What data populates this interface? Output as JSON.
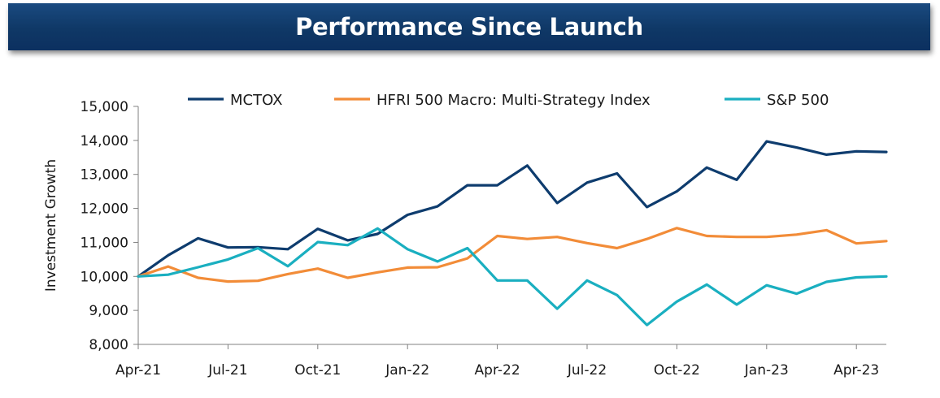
{
  "header": {
    "title": "Performance Since Launch"
  },
  "chart_data": {
    "type": "line",
    "ylabel": "Investment Growth",
    "ylim": [
      8000,
      15000
    ],
    "y_ticks": [
      "8,000",
      "9,000",
      "10,000",
      "11,000",
      "12,000",
      "13,000",
      "14,000",
      "15,000"
    ],
    "x": [
      "Apr-21",
      "May-21",
      "Jun-21",
      "Jul-21",
      "Aug-21",
      "Sep-21",
      "Oct-21",
      "Nov-21",
      "Dec-21",
      "Jan-22",
      "Feb-22",
      "Mar-22",
      "Apr-22",
      "May-22",
      "Jun-22",
      "Jul-22",
      "Aug-22",
      "Sep-22",
      "Oct-22",
      "Nov-22",
      "Dec-22",
      "Jan-23",
      "Feb-23",
      "Mar-23",
      "Apr-23",
      "May-23"
    ],
    "x_tick_labels": [
      "Apr-21",
      "",
      "",
      "Jul-21",
      "",
      "",
      "Oct-21",
      "",
      "",
      "Jan-22",
      "",
      "",
      "Apr-22",
      "",
      "",
      "Jul-22",
      "",
      "",
      "Oct-22",
      "",
      "",
      "Jan-23",
      "",
      "",
      "Apr-23",
      ""
    ],
    "legend_position": "top",
    "series": [
      {
        "name": "MCTOX",
        "color": "#0e3c6e",
        "values": [
          10000,
          10620,
          11120,
          10850,
          10860,
          10800,
          11400,
          11060,
          11250,
          11810,
          12060,
          12680,
          12680,
          13260,
          12160,
          12760,
          13030,
          12040,
          12500,
          13200,
          12840,
          13970,
          13790,
          13580,
          13680,
          13660
        ]
      },
      {
        "name": "HFRI 500 Macro: Multi-Strategy Index",
        "color": "#f28c38",
        "values": [
          10000,
          10290,
          9960,
          9850,
          9870,
          10070,
          10230,
          9960,
          10120,
          10260,
          10270,
          10530,
          11190,
          11100,
          11160,
          10980,
          10830,
          11100,
          11420,
          11190,
          11160,
          11160,
          11230,
          11360,
          10970,
          11040
        ]
      },
      {
        "name": "S&P 500",
        "color": "#1aafc0",
        "values": [
          10000,
          10050,
          10270,
          10500,
          10830,
          10300,
          11010,
          10920,
          11410,
          10800,
          10440,
          10830,
          9880,
          9880,
          9050,
          9880,
          9450,
          8570,
          9260,
          9760,
          9170,
          9740,
          9490,
          9840,
          9970,
          10000
        ]
      }
    ]
  }
}
